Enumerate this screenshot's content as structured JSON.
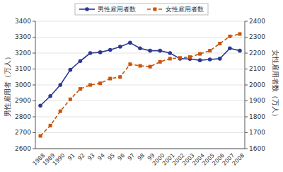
{
  "chart_data": {
    "type": "line",
    "categories": [
      "1988",
      "1989",
      "1990",
      "91",
      "92",
      "93",
      "94",
      "95",
      "96",
      "97",
      "98",
      "99",
      "2000",
      "2001",
      "2002",
      "2003",
      "2004",
      "2005",
      "2006",
      "2007",
      "2008"
    ],
    "series": [
      {
        "name": "男性雇用者数",
        "color": "#2b3990",
        "marker": "circle",
        "line_style": "solid",
        "axis": "y",
        "values": [
          2870,
          2930,
          3000,
          3095,
          3150,
          3200,
          3205,
          3220,
          3240,
          3265,
          3230,
          3215,
          3215,
          3200,
          3165,
          3163,
          3155,
          3160,
          3165,
          3230,
          3215
        ]
      },
      {
        "name": "女性雇用者数",
        "color": "#c8540a",
        "marker": "square",
        "line_style": "dashed",
        "axis": "y2",
        "values": [
          1680,
          1745,
          1835,
          1910,
          1975,
          2000,
          2010,
          2040,
          2050,
          2130,
          2120,
          2115,
          2145,
          2165,
          2170,
          2175,
          2195,
          2215,
          2260,
          2305,
          2320
        ]
      }
    ],
    "ylabel": "男性雇用者（万人）",
    "y2label": "女性雇用者数（万人）",
    "ylim": [
      2600,
      3400
    ],
    "yticks": [
      2600,
      2700,
      2800,
      2900,
      3000,
      3100,
      3200,
      3300,
      3400
    ],
    "y2lim": [
      1600,
      2400
    ],
    "y2ticks": [
      1600,
      1700,
      1800,
      1900,
      2000,
      2100,
      2200,
      2300,
      2400
    ],
    "grid": true,
    "legend": "top"
  }
}
